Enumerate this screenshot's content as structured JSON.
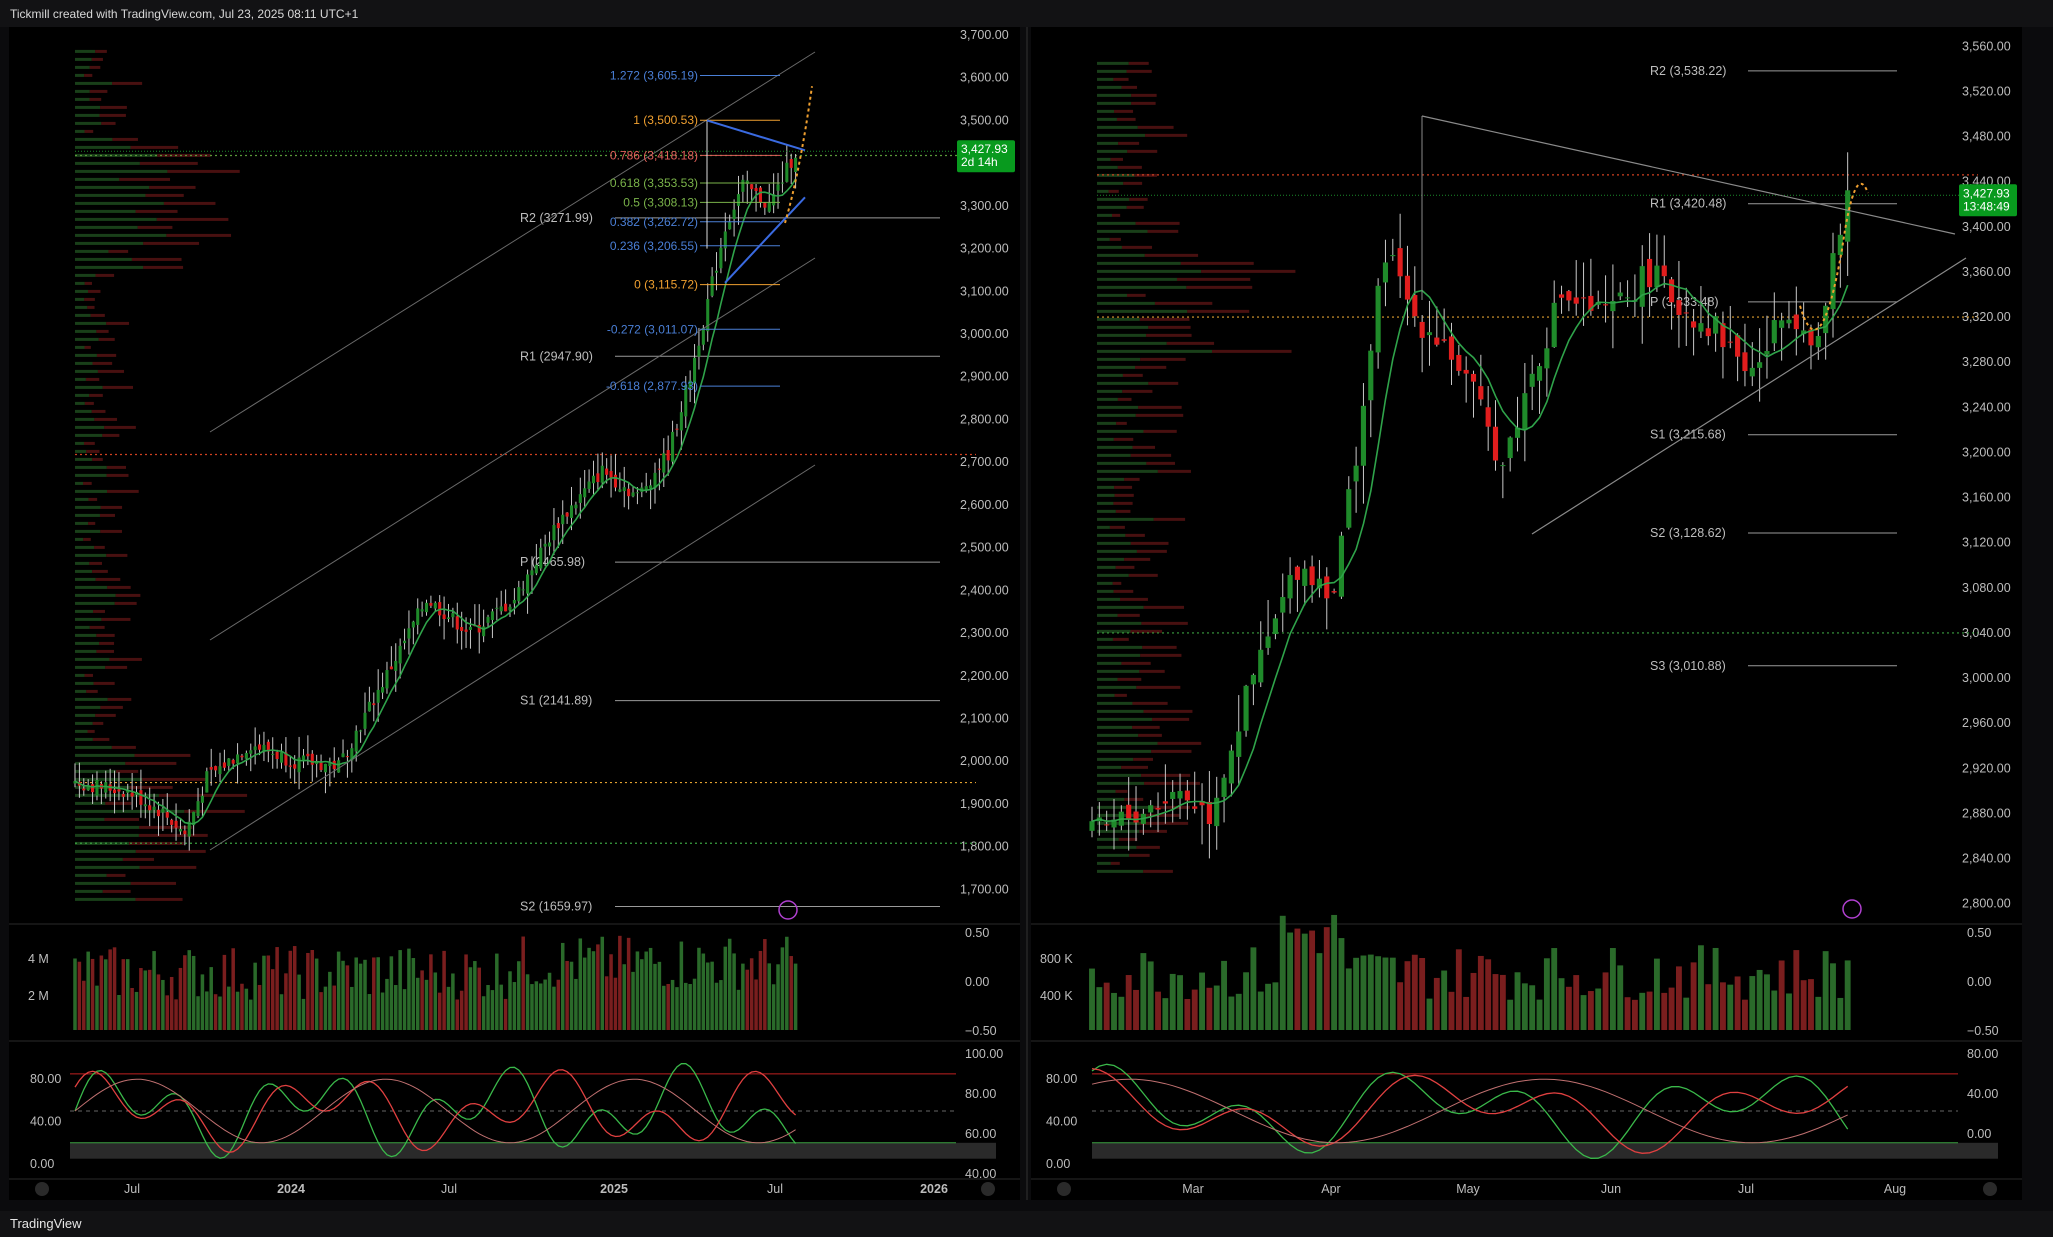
{
  "header": {
    "text": "Tickmill created with TradingView.com, Jul 23, 2025 08:11 UTC+1"
  },
  "footer": {
    "brand": "TradingView"
  },
  "colors": {
    "bg": "#000000",
    "up": "#1f8a2a",
    "down": "#e11d1d",
    "grid": "#1a1a1a",
    "text": "#bdbdbd",
    "price_badge": "#089a1e",
    "fib_blue": "#4a7fd6",
    "fib_orange": "#f0a030",
    "fib_green": "#7ab34a",
    "fib_red": "#e0605a"
  },
  "chart_data": [
    {
      "type": "candlestick",
      "panel": "left",
      "timeframe": "weekly",
      "yaxis": {
        "ticks": [
          "3,700.00",
          "3,600.00",
          "3,500.00",
          "3,400.00",
          "3,300.00",
          "3,200.00",
          "3,100.00",
          "3,000.00",
          "2,900.00",
          "2,800.00",
          "2,700.00",
          "2,600.00",
          "2,500.00",
          "2,400.00",
          "2,300.00",
          "2,200.00",
          "2,100.00",
          "2,000.00",
          "1,900.00",
          "1,800.00",
          "1,700.00"
        ],
        "range": [
          1640,
          3700
        ]
      },
      "xaxis": {
        "ticks": [
          "Jul",
          "2024",
          "Jul",
          "2025",
          "Jul",
          "2026"
        ]
      },
      "last_price": "3,427.93",
      "countdown": "2d 14h",
      "pivots": [
        {
          "label": "R2 (3271.99)",
          "value": 3271.99
        },
        {
          "label": "R1 (2947.90)",
          "value": 2947.9
        },
        {
          "label": "P (2465.98)",
          "value": 2465.98
        },
        {
          "label": "S1 (2141.89)",
          "value": 2141.89
        },
        {
          "label": "S2 (1659.97)",
          "value": 1659.97
        }
      ],
      "fib_levels": [
        {
          "label": "1.272 (3,605.19)",
          "value": 3605.19,
          "color": "#4a7fd6"
        },
        {
          "label": "1 (3,500.53)",
          "value": 3500.53,
          "color": "#f0a030"
        },
        {
          "label": "0.786 (3,418.18)",
          "value": 3418.18,
          "color": "#e0605a"
        },
        {
          "label": "0.618 (3,353.53)",
          "value": 3353.53,
          "color": "#7ab34a"
        },
        {
          "label": "0.5 (3,308.13)",
          "value": 3308.13,
          "color": "#7ab34a"
        },
        {
          "label": "0.382 (3,262.72)",
          "value": 3262.72,
          "color": "#4a7fd6"
        },
        {
          "label": "0.236 (3,206.55)",
          "value": 3206.55,
          "color": "#4a7fd6"
        },
        {
          "label": "0 (3,115.72)",
          "value": 3115.72,
          "color": "#f0a030"
        },
        {
          "label": "-0.272 (3,011.07)",
          "value": 3011.07,
          "color": "#4a7fd6"
        },
        {
          "label": "-0.618 (2,877.93)",
          "value": 2877.93,
          "color": "#4a7fd6"
        }
      ],
      "horizontal_lines": [
        {
          "value": 3418,
          "color": "#5a9a3a",
          "style": "dotted"
        },
        {
          "value": 2718,
          "color": "#d04020",
          "style": "dotted"
        },
        {
          "value": 1950,
          "color": "#e0a030",
          "style": "dotted"
        },
        {
          "value": 1808,
          "color": "#3aa040",
          "style": "dotted"
        }
      ],
      "volume": {
        "ticks": [
          "4 M",
          "2 M"
        ],
        "right_ticks": [
          "0.50",
          "0.00",
          "−0.50"
        ]
      },
      "stoch": {
        "ticks": [
          "80.00",
          "40.00",
          "0.00"
        ],
        "right_ticks": [
          "100.00",
          "80.00",
          "60.00",
          "40.00"
        ]
      }
    },
    {
      "type": "candlestick",
      "panel": "right",
      "timeframe": "daily",
      "yaxis": {
        "ticks": [
          "3,560.00",
          "3,520.00",
          "3,480.00",
          "3,440.00",
          "3,400.00",
          "3,360.00",
          "3,320.00",
          "3,280.00",
          "3,240.00",
          "3,200.00",
          "3,160.00",
          "3,120.00",
          "3,080.00",
          "3,040.00",
          "3,000.00",
          "2,960.00",
          "2,920.00",
          "2,880.00",
          "2,840.00",
          "2,800.00"
        ],
        "range": [
          2790,
          3570
        ]
      },
      "xaxis": {
        "ticks": [
          "Mar",
          "Apr",
          "May",
          "Jun",
          "Jul",
          "Aug"
        ]
      },
      "last_price": "3,427.93",
      "countdown": "13:48:49",
      "pivots": [
        {
          "label": "R2 (3,538.22)",
          "value": 3538.22
        },
        {
          "label": "R1 (3,420.48)",
          "value": 3420.48
        },
        {
          "label": "P (3,333.48)",
          "value": 3333.48
        },
        {
          "label": "S1 (3,215.68)",
          "value": 3215.68
        },
        {
          "label": "S2 (3,128.62)",
          "value": 3128.62
        },
        {
          "label": "S3 (3,010.88)",
          "value": 3010.88
        }
      ],
      "horizontal_lines": [
        {
          "value": 3446,
          "color": "#d04020",
          "style": "dotted"
        },
        {
          "value": 3320,
          "color": "#e0a030",
          "style": "dotted"
        },
        {
          "value": 3040,
          "color": "#3aa040",
          "style": "dotted"
        }
      ],
      "volume": {
        "ticks": [
          "800 K",
          "400 K"
        ],
        "right_ticks": [
          "0.50",
          "0.00",
          "−0.50"
        ]
      },
      "stoch": {
        "ticks": [
          "80.00",
          "40.00",
          "0.00"
        ],
        "right_ticks": [
          "80.00",
          "40.00",
          "0.00"
        ]
      }
    }
  ]
}
